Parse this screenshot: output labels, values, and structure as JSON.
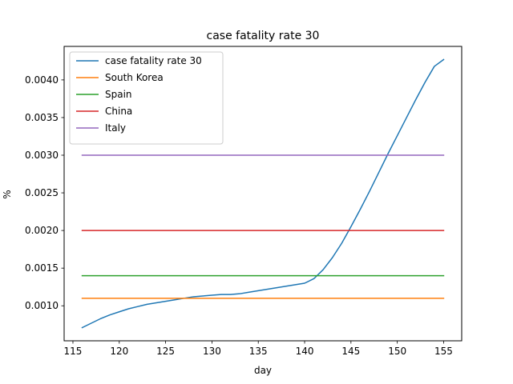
{
  "chart_data": {
    "type": "line",
    "title": "case fatality rate 30",
    "xlabel": "day",
    "ylabel": "%",
    "xlim": [
      114.05,
      156.95
    ],
    "ylim": [
      0.000535,
      0.004445
    ],
    "xticks": [
      115,
      120,
      125,
      130,
      135,
      140,
      145,
      150,
      155
    ],
    "yticks": [
      0.001,
      0.0015,
      0.002,
      0.0025,
      0.003,
      0.0035,
      0.004
    ],
    "ytick_labels": [
      "0.0010",
      "0.0015",
      "0.0020",
      "0.0025",
      "0.0030",
      "0.0035",
      "0.0040"
    ],
    "grid": false,
    "legend_position": "top-left",
    "series": [
      {
        "name": "case fatality rate 30",
        "color": "#1f77b4",
        "x": [
          116,
          117,
          118,
          119,
          120,
          121,
          122,
          123,
          124,
          125,
          126,
          127,
          128,
          129,
          130,
          131,
          132,
          133,
          134,
          135,
          136,
          137,
          138,
          139,
          140,
          141,
          142,
          143,
          144,
          145,
          146,
          147,
          148,
          149,
          150,
          151,
          152,
          153,
          154,
          155
        ],
        "y": [
          0.00071,
          0.00077,
          0.00083,
          0.00088,
          0.00092,
          0.00096,
          0.00099,
          0.00102,
          0.00104,
          0.00106,
          0.00108,
          0.0011,
          0.00112,
          0.00113,
          0.00114,
          0.00115,
          0.00115,
          0.00116,
          0.00118,
          0.0012,
          0.00122,
          0.00124,
          0.00126,
          0.00128,
          0.0013,
          0.00136,
          0.00148,
          0.00164,
          0.00183,
          0.00205,
          0.00228,
          0.00252,
          0.00277,
          0.00302,
          0.00326,
          0.0035,
          0.00374,
          0.00397,
          0.00418,
          0.00427
        ]
      },
      {
        "name": "South Korea",
        "color": "#ff7f0e",
        "x": [
          116,
          155
        ],
        "y": [
          0.0011,
          0.0011
        ]
      },
      {
        "name": "Spain",
        "color": "#2ca02c",
        "x": [
          116,
          155
        ],
        "y": [
          0.0014,
          0.0014
        ]
      },
      {
        "name": "China",
        "color": "#d62728",
        "x": [
          116,
          155
        ],
        "y": [
          0.002,
          0.002
        ]
      },
      {
        "name": "Italy",
        "color": "#9467bd",
        "x": [
          116,
          155
        ],
        "y": [
          0.003,
          0.003
        ]
      }
    ]
  }
}
